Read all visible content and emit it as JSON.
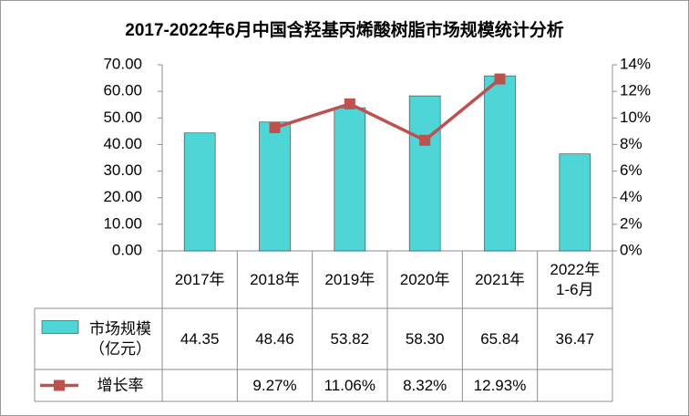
{
  "chart_data": {
    "type": "bar_line_table",
    "title": "2017-2022年6月中国含羟基丙烯酸树脂市场规模统计分析",
    "categories": [
      "2017年",
      "2018年",
      "2019年",
      "2020年",
      "2021年",
      "2022年1-6月"
    ],
    "series": [
      {
        "name": "市场规模（亿元）",
        "type": "bar",
        "color": "#4ed6d6",
        "values": [
          44.35,
          48.46,
          53.82,
          58.3,
          65.84,
          36.47
        ],
        "value_labels": [
          "44.35",
          "48.46",
          "53.82",
          "58.30",
          "65.84",
          "36.47"
        ]
      },
      {
        "name": "增长率",
        "type": "line",
        "axis": "y2",
        "color": "#c0504d",
        "values": [
          null,
          9.27,
          11.06,
          8.32,
          12.93,
          null
        ],
        "value_labels": [
          null,
          "9.27%",
          "11.06%",
          "8.32%",
          "12.93%",
          null
        ]
      }
    ],
    "ylim": [
      0,
      70
    ],
    "yticks": [
      {
        "value": 0,
        "label": "0.00"
      },
      {
        "value": 10,
        "label": "10.00"
      },
      {
        "value": 20,
        "label": "20.00"
      },
      {
        "value": 30,
        "label": "30.00"
      },
      {
        "value": 40,
        "label": "40.00"
      },
      {
        "value": 50,
        "label": "50.00"
      },
      {
        "value": 60,
        "label": "60.00"
      },
      {
        "value": 70,
        "label": "70.00"
      }
    ],
    "y2lim": [
      0,
      14
    ],
    "y2ticks": [
      {
        "value": 0,
        "label": "0%"
      },
      {
        "value": 2,
        "label": "2%"
      },
      {
        "value": 4,
        "label": "4%"
      },
      {
        "value": 6,
        "label": "6%"
      },
      {
        "value": 8,
        "label": "8%"
      },
      {
        "value": 10,
        "label": "10%"
      },
      {
        "value": 12,
        "label": "12%"
      },
      {
        "value": 14,
        "label": "14%"
      }
    ],
    "grid": false
  }
}
